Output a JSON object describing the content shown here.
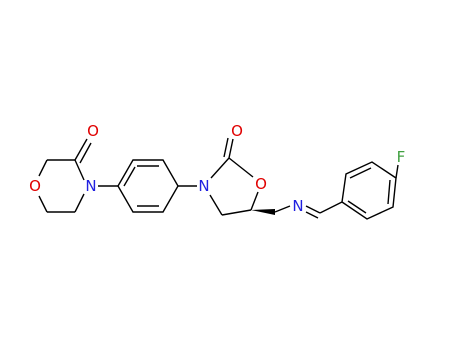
{
  "atoms": [
    {
      "label": "O"
    },
    {
      "label": "O"
    },
    {
      "label": "N"
    },
    {
      "label": "N"
    },
    {
      "label": "O"
    },
    {
      "label": "O"
    },
    {
      "label": "N"
    },
    {
      "label": "F"
    }
  ]
}
